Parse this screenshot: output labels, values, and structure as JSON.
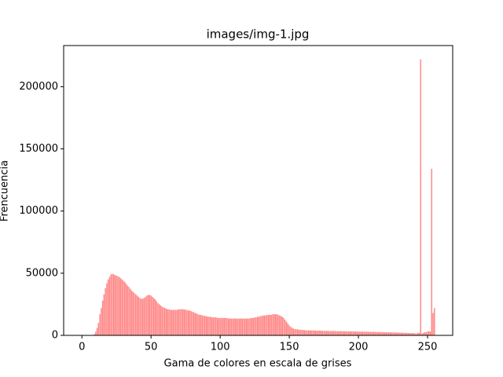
{
  "chart_data": {
    "type": "bar",
    "title": "images/img-1.jpg",
    "xlabel": "Gama de colores en escala de grises",
    "ylabel": "Frencuencia",
    "color": "#ff8080",
    "xlim": [
      -13.19,
      268.19
    ],
    "xticks": [
      0,
      50,
      100,
      150,
      200,
      250
    ],
    "ylim": [
      0,
      233100
    ],
    "yticks": [
      0,
      50000,
      100000,
      150000,
      200000
    ],
    "x": [
      0,
      1,
      2,
      3,
      4,
      5,
      6,
      7,
      8,
      9,
      10,
      11,
      12,
      13,
      14,
      15,
      16,
      17,
      18,
      19,
      20,
      21,
      22,
      23,
      24,
      25,
      26,
      27,
      28,
      29,
      30,
      31,
      32,
      33,
      34,
      35,
      36,
      37,
      38,
      39,
      40,
      41,
      42,
      43,
      44,
      45,
      46,
      47,
      48,
      49,
      50,
      51,
      52,
      53,
      54,
      55,
      56,
      57,
      58,
      59,
      60,
      61,
      62,
      63,
      64,
      65,
      66,
      67,
      68,
      69,
      70,
      71,
      72,
      73,
      74,
      75,
      76,
      77,
      78,
      79,
      80,
      81,
      82,
      83,
      84,
      85,
      86,
      87,
      88,
      89,
      90,
      91,
      92,
      93,
      94,
      95,
      96,
      97,
      98,
      99,
      100,
      101,
      102,
      103,
      104,
      105,
      106,
      107,
      108,
      109,
      110,
      111,
      112,
      113,
      114,
      115,
      116,
      117,
      118,
      119,
      120,
      121,
      122,
      123,
      124,
      125,
      126,
      127,
      128,
      129,
      130,
      131,
      132,
      133,
      134,
      135,
      136,
      137,
      138,
      139,
      140,
      141,
      142,
      143,
      144,
      145,
      146,
      147,
      148,
      149,
      150,
      151,
      152,
      153,
      154,
      155,
      156,
      157,
      158,
      159,
      160,
      161,
      162,
      163,
      164,
      165,
      166,
      167,
      168,
      169,
      170,
      171,
      172,
      173,
      174,
      175,
      176,
      177,
      178,
      179,
      180,
      181,
      182,
      183,
      184,
      185,
      186,
      187,
      188,
      189,
      190,
      191,
      192,
      193,
      194,
      195,
      196,
      197,
      198,
      199,
      200,
      201,
      202,
      203,
      204,
      205,
      206,
      207,
      208,
      209,
      210,
      211,
      212,
      213,
      214,
      215,
      216,
      217,
      218,
      219,
      220,
      221,
      222,
      223,
      224,
      225,
      226,
      227,
      228,
      229,
      230,
      231,
      232,
      233,
      234,
      235,
      236,
      237,
      238,
      239,
      240,
      241,
      242,
      243,
      244,
      245,
      246,
      247,
      248,
      249,
      250,
      251,
      252,
      253,
      254,
      255
    ],
    "values": [
      0,
      0,
      0,
      0,
      0,
      0,
      0,
      0,
      200,
      1000,
      3000,
      6000,
      10000,
      17000,
      22000,
      28000,
      33000,
      38000,
      42000,
      45000,
      47000,
      49000,
      49500,
      49000,
      48500,
      48000,
      47500,
      47000,
      46000,
      45000,
      44000,
      43000,
      41500,
      40000,
      39000,
      37500,
      36000,
      35000,
      34000,
      33000,
      32000,
      31000,
      30000,
      29500,
      29500,
      30000,
      31000,
      32000,
      32500,
      32500,
      32000,
      31000,
      30000,
      29000,
      27500,
      26000,
      25000,
      24000,
      23000,
      22500,
      22000,
      21500,
      21000,
      21000,
      20500,
      20500,
      20500,
      20500,
      20500,
      20500,
      21000,
      21000,
      21000,
      21000,
      21000,
      20500,
      20500,
      20000,
      20000,
      19500,
      19000,
      18500,
      18000,
      17500,
      17000,
      16500,
      16500,
      16000,
      16000,
      15500,
      15500,
      15000,
      15000,
      15000,
      14500,
      14500,
      14500,
      14500,
      14000,
      14000,
      14000,
      14000,
      14000,
      14000,
      14000,
      14000,
      13500,
      13500,
      13500,
      13500,
      13500,
      13500,
      13500,
      13500,
      13500,
      13500,
      13500,
      13500,
      13500,
      13500,
      13500,
      13500,
      14000,
      14000,
      14000,
      14500,
      14500,
      15000,
      15000,
      15500,
      15500,
      16000,
      16000,
      16000,
      16500,
      16500,
      16500,
      16500,
      17000,
      17000,
      17000,
      17000,
      16500,
      16000,
      15500,
      15000,
      14000,
      12500,
      11000,
      9500,
      8000,
      7000,
      6000,
      5500,
      5000,
      5000,
      4800,
      4600,
      4500,
      4400,
      4300,
      4200,
      4100,
      4000,
      4000,
      4000,
      4000,
      4000,
      4000,
      3800,
      3800,
      3800,
      3800,
      3800,
      3600,
      3600,
      3600,
      3600,
      3600,
      3500,
      3500,
      3500,
      3500,
      3500,
      3400,
      3400,
      3400,
      3400,
      3400,
      3300,
      3300,
      3300,
      3300,
      3200,
      3200,
      3200,
      3200,
      3200,
      3100,
      3100,
      3100,
      3000,
      3000,
      3000,
      3000,
      2900,
      2900,
      2900,
      2900,
      2800,
      2800,
      2800,
      2800,
      2700,
      2700,
      2700,
      2600,
      2600,
      2600,
      2500,
      2500,
      2500,
      2500,
      2400,
      2400,
      2400,
      2300,
      2300,
      2300,
      2200,
      2200,
      2200,
      2100,
      2100,
      2000,
      2000,
      2000,
      1900,
      1900,
      1800,
      1800,
      1500,
      1500,
      2000,
      2000,
      222000,
      1500,
      2000,
      2500,
      2500,
      3000,
      3500,
      3000,
      134000,
      18000,
      22000
    ]
  }
}
